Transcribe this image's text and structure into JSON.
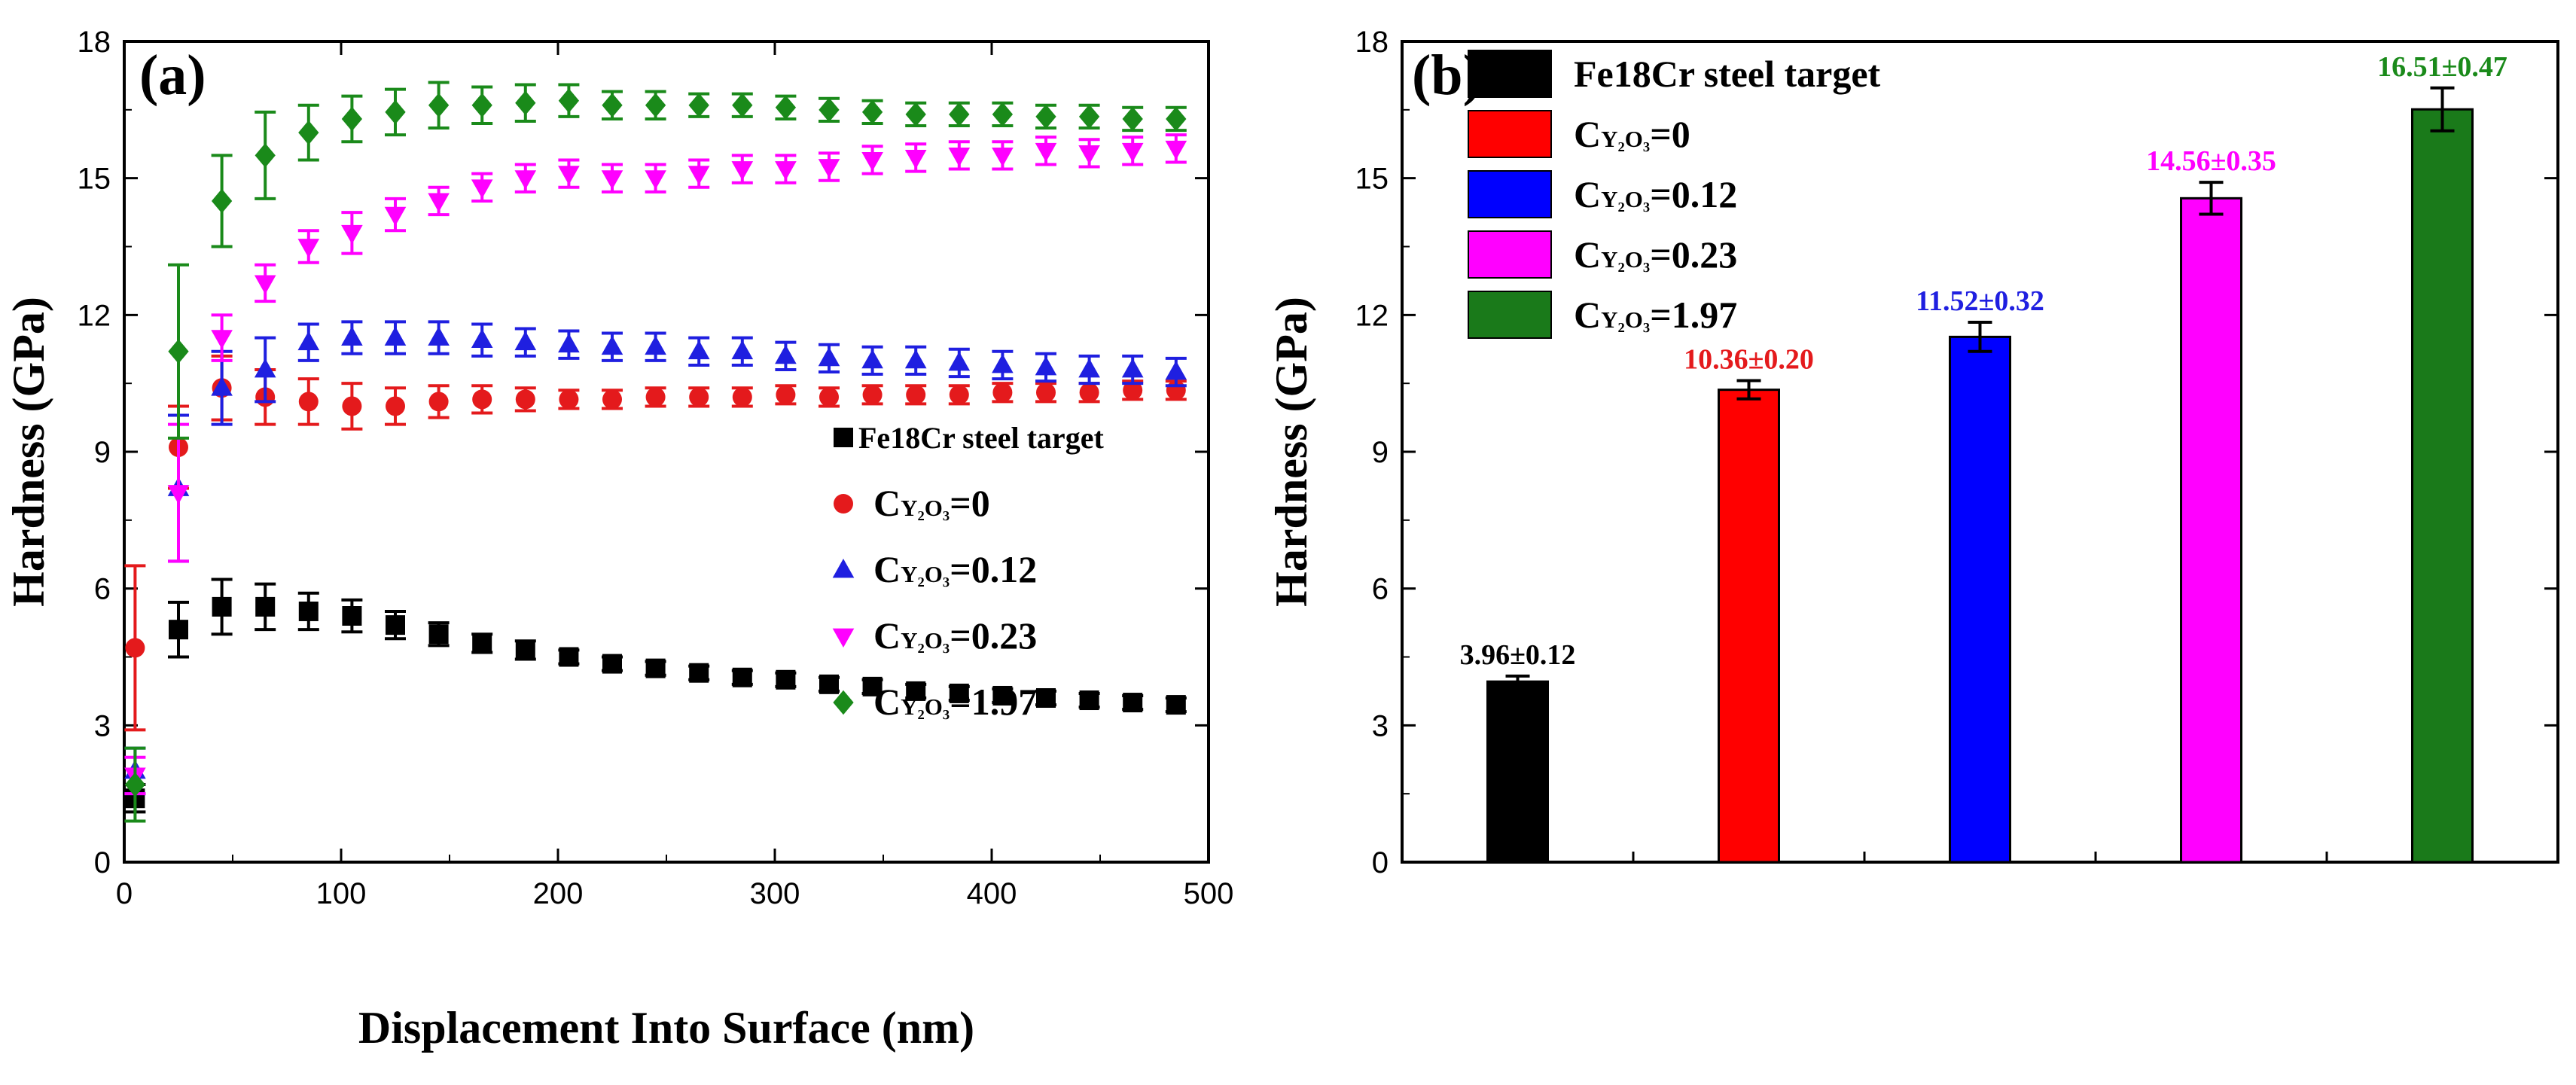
{
  "chart_data": [
    {
      "panel_label": "(a)",
      "type": "scatter",
      "xlabel": "Displacement Into Surface (nm)",
      "ylabel": "Hardness (GPa)",
      "xlim": [
        0,
        500
      ],
      "ylim": [
        0,
        18
      ],
      "xticks": [
        0,
        100,
        200,
        300,
        400,
        500
      ],
      "yticks": [
        0,
        3,
        6,
        9,
        12,
        15,
        18
      ],
      "legend_position": "lower-right",
      "x": [
        5,
        25,
        45,
        65,
        85,
        105,
        125,
        145,
        165,
        185,
        205,
        225,
        245,
        265,
        285,
        305,
        325,
        345,
        365,
        385,
        405,
        425,
        445,
        465,
        485
      ],
      "series": [
        {
          "name": "Fe18Cr steel target",
          "marker": "square",
          "color": "#000000",
          "values": [
            1.4,
            5.1,
            5.6,
            5.6,
            5.5,
            5.4,
            5.2,
            5.0,
            4.8,
            4.65,
            4.5,
            4.35,
            4.25,
            4.15,
            4.05,
            4.0,
            3.9,
            3.85,
            3.75,
            3.7,
            3.65,
            3.6,
            3.55,
            3.5,
            3.45
          ],
          "errors": [
            0.3,
            0.6,
            0.6,
            0.5,
            0.4,
            0.35,
            0.3,
            0.25,
            0.2,
            0.2,
            0.15,
            0.15,
            0.15,
            0.15,
            0.15,
            0.15,
            0.15,
            0.15,
            0.15,
            0.15,
            0.15,
            0.15,
            0.15,
            0.15,
            0.15
          ]
        },
        {
          "name": "0",
          "legend_prefix": "C",
          "legend_sub": "Y₂O₃",
          "legend_suffix": "=0",
          "marker": "circle",
          "color": "#e41a1c",
          "values": [
            4.7,
            9.1,
            10.4,
            10.2,
            10.1,
            10.0,
            10.0,
            10.1,
            10.15,
            10.15,
            10.15,
            10.15,
            10.2,
            10.2,
            10.2,
            10.25,
            10.2,
            10.25,
            10.25,
            10.25,
            10.3,
            10.3,
            10.3,
            10.35,
            10.35
          ],
          "errors": [
            1.8,
            0.9,
            0.7,
            0.6,
            0.5,
            0.5,
            0.4,
            0.35,
            0.3,
            0.25,
            0.2,
            0.2,
            0.2,
            0.2,
            0.2,
            0.2,
            0.2,
            0.2,
            0.2,
            0.2,
            0.2,
            0.2,
            0.2,
            0.2,
            0.2
          ]
        },
        {
          "name": "0.12",
          "legend_prefix": "C",
          "legend_sub": "Y₂O₃",
          "legend_suffix": "=0.12",
          "marker": "triangle-up",
          "color": "#1f1fe0",
          "values": [
            2.0,
            8.2,
            10.4,
            10.8,
            11.4,
            11.5,
            11.5,
            11.5,
            11.45,
            11.4,
            11.35,
            11.3,
            11.3,
            11.2,
            11.2,
            11.1,
            11.05,
            11.0,
            11.0,
            10.95,
            10.9,
            10.85,
            10.8,
            10.8,
            10.75
          ],
          "errors": [
            0.5,
            1.6,
            0.8,
            0.7,
            0.4,
            0.35,
            0.35,
            0.35,
            0.35,
            0.3,
            0.3,
            0.3,
            0.3,
            0.3,
            0.3,
            0.3,
            0.3,
            0.3,
            0.3,
            0.3,
            0.3,
            0.3,
            0.3,
            0.3,
            0.3
          ]
        },
        {
          "name": "0.23",
          "legend_prefix": "C",
          "legend_sub": "Y₂O₃",
          "legend_suffix": "=0.23",
          "marker": "triangle-down",
          "color": "#ff00ff",
          "values": [
            1.9,
            8.1,
            11.5,
            12.7,
            13.5,
            13.8,
            14.2,
            14.5,
            14.8,
            15.0,
            15.1,
            15.0,
            15.0,
            15.1,
            15.2,
            15.2,
            15.25,
            15.4,
            15.45,
            15.5,
            15.5,
            15.6,
            15.55,
            15.6,
            15.65
          ],
          "errors": [
            0.4,
            1.5,
            0.5,
            0.4,
            0.35,
            0.45,
            0.35,
            0.3,
            0.3,
            0.3,
            0.3,
            0.3,
            0.3,
            0.3,
            0.3,
            0.3,
            0.3,
            0.3,
            0.3,
            0.3,
            0.3,
            0.3,
            0.3,
            0.3,
            0.3
          ]
        },
        {
          "name": "1.97",
          "legend_prefix": "C",
          "legend_sub": "Y₂O₃",
          "legend_suffix": "=1.97",
          "marker": "diamond",
          "color": "#1a8a1a",
          "values": [
            1.7,
            11.2,
            14.5,
            15.5,
            16.0,
            16.3,
            16.45,
            16.6,
            16.6,
            16.65,
            16.7,
            16.6,
            16.6,
            16.6,
            16.6,
            16.55,
            16.5,
            16.45,
            16.4,
            16.4,
            16.4,
            16.35,
            16.35,
            16.3,
            16.3
          ],
          "errors": [
            0.8,
            1.9,
            1.0,
            0.95,
            0.6,
            0.5,
            0.5,
            0.5,
            0.4,
            0.4,
            0.35,
            0.3,
            0.3,
            0.25,
            0.25,
            0.25,
            0.25,
            0.25,
            0.25,
            0.25,
            0.25,
            0.25,
            0.25,
            0.25,
            0.25
          ]
        }
      ]
    },
    {
      "panel_label": "(b)",
      "type": "bar",
      "xlabel": "",
      "ylabel": "Hardness (GPa)",
      "ylim": [
        0,
        18
      ],
      "yticks": [
        0,
        3,
        6,
        9,
        12,
        15,
        18
      ],
      "legend_position": "top-left",
      "categories": [
        "Fe18Cr steel target",
        "0",
        "0.12",
        "0.23",
        "1.97"
      ],
      "values": [
        3.96,
        10.36,
        11.52,
        14.56,
        16.51
      ],
      "errors": [
        0.12,
        0.2,
        0.32,
        0.35,
        0.47
      ],
      "colors": [
        "#000000",
        "#ff0000",
        "#0000ff",
        "#ff00ff",
        "#1a7a1a"
      ],
      "label_colors": [
        "#000000",
        "#e41a1c",
        "#1f1fe0",
        "#ff00ff",
        "#1a8a1a"
      ],
      "data_labels": [
        "3.96±0.12",
        "10.36±0.20",
        "11.52±0.32",
        "14.56±0.35",
        "16.51±0.47"
      ],
      "legend": [
        {
          "text": "Fe18Cr steel target"
        },
        {
          "prefix": "C",
          "sub": "Y₂O₃",
          "suffix": "=0"
        },
        {
          "prefix": "C",
          "sub": "Y₂O₃",
          "suffix": "=0.12"
        },
        {
          "prefix": "C",
          "sub": "Y₂O₃",
          "suffix": "=0.23"
        },
        {
          "prefix": "C",
          "sub": "Y₂O₃",
          "suffix": "=1.97"
        }
      ]
    }
  ]
}
